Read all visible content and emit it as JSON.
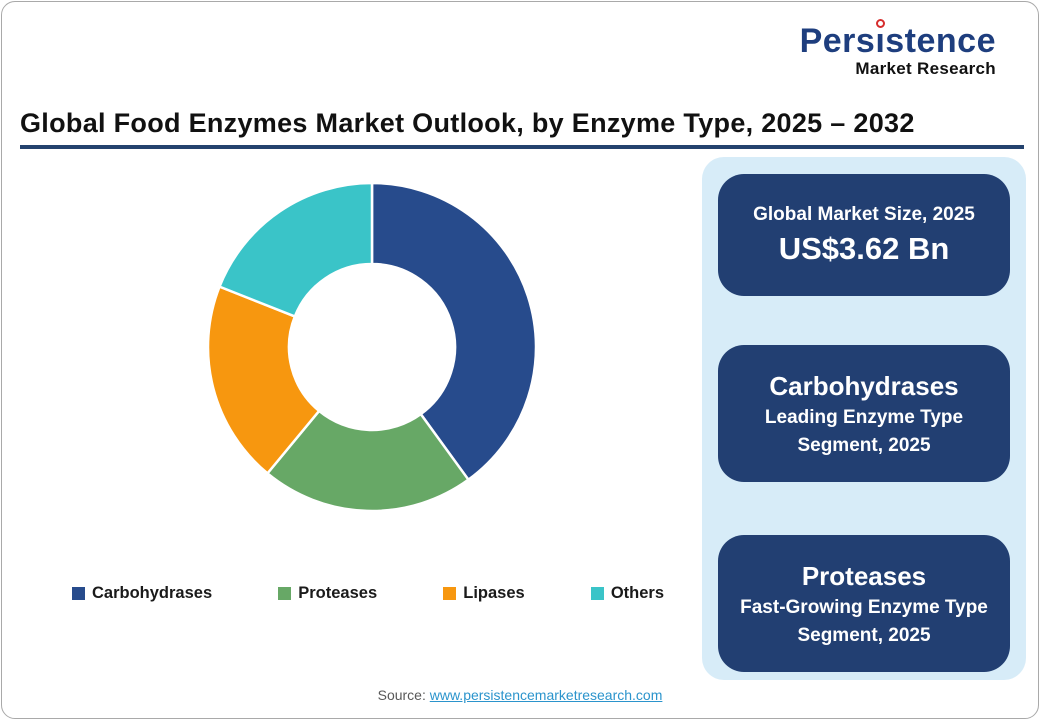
{
  "logo": {
    "brand": "Persistence",
    "subtitle": "Market Research"
  },
  "title": "Global Food Enzymes Market Outlook, by Enzyme Type, 2025 – 2032",
  "chart_data": {
    "type": "pie",
    "subtype": "donut",
    "categories": [
      "Carbohydrases",
      "Proteases",
      "Lipases",
      "Others"
    ],
    "values": [
      40,
      21,
      20,
      19
    ],
    "unit": "% share (estimated from segment angles, no data labels shown)",
    "colors": [
      "#274b8c",
      "#67a866",
      "#f7970f",
      "#3ac4c8"
    ],
    "start_angle_deg": 0,
    "direction": "clockwise",
    "inner_radius_ratio": 0.5,
    "legend_position": "bottom",
    "title": "Global Food Enzymes Market Outlook, by Enzyme Type, 2025 – 2032"
  },
  "info_panel": {
    "cards": [
      {
        "title": "Global Market Size, 2025",
        "value": "US$3.62 Bn"
      },
      {
        "title": "Carbohydrases",
        "subtitle": "Leading Enzyme Type Segment, 2025"
      },
      {
        "title": "Proteases",
        "subtitle": "Fast-Growing Enzyme Type Segment, 2025"
      }
    ]
  },
  "source": {
    "label": "Source:",
    "link_text": "www.persistencemarketresearch.com"
  },
  "colors": {
    "underline": "#24426e",
    "panel_bg": "#d7ecf8",
    "card_bg": "#223f72",
    "link": "#2b94cc",
    "logo_brand": "#1e3e7e",
    "logo_dot": "#d62e2e"
  }
}
